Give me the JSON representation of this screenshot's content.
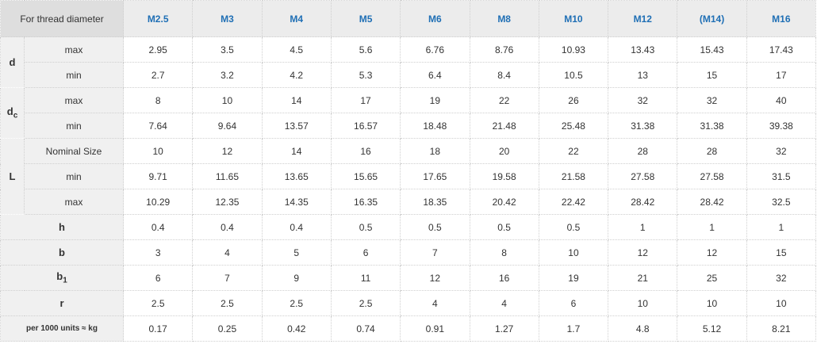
{
  "table": {
    "corner": "For thread diameter",
    "columns": [
      "M2.5",
      "M3",
      "M4",
      "M5",
      "M6",
      "M8",
      "M10",
      "M12",
      "(M14)",
      "M16"
    ],
    "groups": [
      {
        "symbol": "d",
        "rows": [
          {
            "label": "max",
            "values": [
              2.95,
              3.5,
              4.5,
              5.6,
              6.76,
              8.76,
              10.93,
              13.43,
              15.43,
              17.43
            ]
          },
          {
            "label": "min",
            "values": [
              2.7,
              3.2,
              4.2,
              5.3,
              6.4,
              8.4,
              10.5,
              13,
              15,
              17
            ]
          }
        ]
      },
      {
        "symbol": "d",
        "symbol_sub": "c",
        "rows": [
          {
            "label": "max",
            "values": [
              8,
              10,
              14,
              17,
              19,
              22,
              26,
              32,
              32,
              40
            ]
          },
          {
            "label": "min",
            "values": [
              7.64,
              9.64,
              13.57,
              16.57,
              18.48,
              21.48,
              25.48,
              31.38,
              31.38,
              39.38
            ]
          }
        ]
      },
      {
        "symbol": "L",
        "rows": [
          {
            "label": "Nominal Size",
            "values": [
              10,
              12,
              14,
              16,
              18,
              20,
              22,
              28,
              28,
              32
            ]
          },
          {
            "label": "min",
            "values": [
              9.71,
              11.65,
              13.65,
              15.65,
              17.65,
              19.58,
              21.58,
              27.58,
              27.58,
              31.5
            ]
          },
          {
            "label": "max",
            "values": [
              10.29,
              12.35,
              14.35,
              16.35,
              18.35,
              20.42,
              22.42,
              28.42,
              28.42,
              32.5
            ]
          }
        ]
      },
      {
        "symbol": "h",
        "values": [
          0.4,
          0.4,
          0.4,
          0.5,
          0.5,
          0.5,
          0.5,
          1,
          1,
          1
        ]
      },
      {
        "symbol": "b",
        "values": [
          3,
          4,
          5,
          6,
          7,
          8,
          10,
          12,
          12,
          15
        ]
      },
      {
        "symbol": "b",
        "symbol_sub": "1",
        "values": [
          6,
          7,
          9,
          11,
          12,
          16,
          19,
          21,
          25,
          32
        ]
      },
      {
        "symbol": "r",
        "values": [
          2.5,
          2.5,
          2.5,
          2.5,
          4,
          4,
          6,
          10,
          10,
          10
        ]
      },
      {
        "symbol": "per 1000 units ≈ kg",
        "values": [
          0.17,
          0.25,
          0.42,
          0.74,
          0.91,
          1.27,
          1.7,
          4.8,
          5.12,
          8.21
        ]
      }
    ]
  }
}
